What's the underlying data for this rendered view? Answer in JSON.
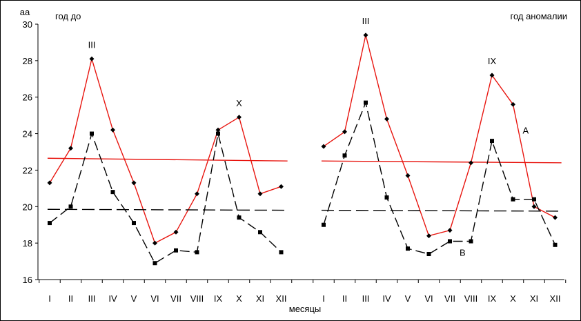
{
  "chart_data": {
    "type": "line",
    "ylabel": "аа",
    "xlabel": "месяцы",
    "ylim": [
      16,
      30
    ],
    "yticks": [
      "16",
      "18",
      "20",
      "22",
      "24",
      "26",
      "28",
      "30"
    ],
    "panels": [
      {
        "title": "год до",
        "categories": [
          "I",
          "II",
          "III",
          "IV",
          "V",
          "VI",
          "VII",
          "VIII",
          "IX",
          "X",
          "XI",
          "XII"
        ],
        "series": [
          {
            "name": "A",
            "style": "solid",
            "color": "#e8150f",
            "values": [
              21.3,
              23.2,
              28.1,
              24.2,
              21.3,
              18.0,
              18.6,
              20.7,
              24.2,
              24.9,
              20.7,
              21.1
            ],
            "trend": [
              22.65,
              22.5
            ]
          },
          {
            "name": "B",
            "style": "dashed",
            "color": "#000000",
            "values": [
              19.1,
              20.0,
              24.0,
              20.8,
              19.1,
              16.9,
              17.6,
              17.5,
              24.0,
              19.4,
              18.6,
              17.5
            ],
            "trend": [
              19.85,
              19.8
            ]
          }
        ],
        "annotations": [
          {
            "text": "III",
            "category": "III",
            "value": 28.7
          },
          {
            "text": "X",
            "category": "X",
            "value": 25.5
          }
        ]
      },
      {
        "title": "год аномалии",
        "categories": [
          "I",
          "II",
          "III",
          "IV",
          "V",
          "VI",
          "VII",
          "VIII",
          "IX",
          "X",
          "XI",
          "XII"
        ],
        "series": [
          {
            "name": "A",
            "style": "solid",
            "color": "#e8150f",
            "values": [
              23.3,
              24.1,
              29.4,
              24.8,
              21.7,
              18.4,
              18.7,
              22.4,
              27.2,
              25.6,
              20.0,
              19.4
            ],
            "trend": [
              22.5,
              22.4
            ]
          },
          {
            "name": "B",
            "style": "dashed",
            "color": "#000000",
            "values": [
              19.0,
              22.8,
              25.7,
              20.5,
              17.7,
              17.4,
              18.1,
              18.1,
              23.6,
              20.4,
              20.4,
              17.9
            ],
            "trend": [
              19.8,
              19.75
            ]
          }
        ],
        "annotations": [
          {
            "text": "III",
            "category": "III",
            "value": 30.0
          },
          {
            "text": "IX",
            "category": "IX",
            "value": 27.8
          },
          {
            "text": "A",
            "category": "X",
            "value": 24.0,
            "dx": 0.6
          },
          {
            "text": "B",
            "category": "VI",
            "value": 17.3,
            "dx": 1.6
          }
        ]
      }
    ]
  }
}
